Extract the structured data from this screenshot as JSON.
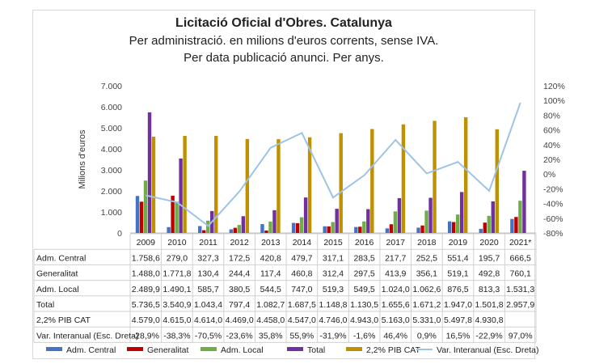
{
  "chart_data": {
    "type": "bar",
    "title": "Licitació Oficial d'Obres. Catalunya",
    "subtitle_lines": [
      "Per administració. en milions d'euros corrents, sense IVA.",
      "Per data publicació anunci. Per anys."
    ],
    "ylabel": "Milions d'euros",
    "ylim": [
      0,
      7000
    ],
    "y_ticks": [
      "0",
      "1.000",
      "2.000",
      "3.000",
      "4.000",
      "5.000",
      "6.000",
      "7.000"
    ],
    "y2lim": [
      -80,
      120
    ],
    "y2_ticks": [
      "-80%",
      "-60%",
      "-40%",
      "-20%",
      "0%",
      "20%",
      "40%",
      "60%",
      "80%",
      "100%",
      "120%"
    ],
    "grid": false,
    "legend_position": "bottom",
    "categories": [
      "2009",
      "2010",
      "2011",
      "2012",
      "2013",
      "2014",
      "2015",
      "2016",
      "2017",
      "2018",
      "2019",
      "2020",
      "2021*"
    ],
    "series": [
      {
        "name": "Adm. Central",
        "color": "#4472c4",
        "axis": "left",
        "values": [
          1758.6,
          279.0,
          327.3,
          172.5,
          420.8,
          479.7,
          317.1,
          283.5,
          217.7,
          252.5,
          551.4,
          195.7,
          666.5
        ],
        "labels": [
          "1.758,6",
          "279,0",
          "327,3",
          "172,5",
          "420,8",
          "479,7",
          "317,1",
          "283,5",
          "217,7",
          "252,5",
          "551,4",
          "195,7",
          "666,5"
        ]
      },
      {
        "name": "Generalitat",
        "color": "#c00000",
        "axis": "left",
        "values": [
          1488.0,
          1771.8,
          130.4,
          244.4,
          117.4,
          460.8,
          312.4,
          297.5,
          413.9,
          356.1,
          519.1,
          492.8,
          760.1
        ],
        "labels": [
          "1.488,0",
          "1.771,8",
          "130,4",
          "244,4",
          "117,4",
          "460,8",
          "312,4",
          "297,5",
          "413,9",
          "356,1",
          "519,1",
          "492,8",
          "760,1"
        ]
      },
      {
        "name": "Adm. Local",
        "color": "#70ad47",
        "axis": "left",
        "values": [
          2489.9,
          1490.1,
          585.7,
          380.5,
          544.5,
          747.0,
          519.3,
          549.5,
          1024.0,
          1062.6,
          876.5,
          813.3,
          1531.3
        ],
        "labels": [
          "2.489,9",
          "1.490,1",
          "585,7",
          "380,5",
          "544,5",
          "747,0",
          "519,3",
          "549,5",
          "1.024,0",
          "1.062,6",
          "876,5",
          "813,3",
          "1.531,3"
        ]
      },
      {
        "name": "Total",
        "color": "#7030a0",
        "axis": "left",
        "values": [
          5736.5,
          3540.9,
          1043.4,
          797.4,
          1082.7,
          1687.5,
          1148.8,
          1130.5,
          1655.6,
          1671.2,
          1947.0,
          1501.8,
          2957.9
        ],
        "labels": [
          "5.736,5",
          "3.540,9",
          "1.043,4",
          "797,4",
          "1.082,7",
          "1.687,5",
          "1.148,8",
          "1.130,5",
          "1.655,6",
          "1.671,2",
          "1.947,0",
          "1.501,8",
          "2.957,9"
        ]
      },
      {
        "name": "2,2% PIB CAT",
        "color": "#bf9000",
        "axis": "left",
        "values": [
          4579.0,
          4615.0,
          4614.0,
          4469.0,
          4458.0,
          4547.0,
          4746.0,
          4943.0,
          5163.0,
          5331.0,
          5497.8,
          4930.8,
          null
        ],
        "labels": [
          "4.579,0",
          "4.615,0",
          "4.614,0",
          "4.469,0",
          "4.458,0",
          "4.547,0",
          "4.746,0",
          "4.943,0",
          "5.163,0",
          "5.331,0",
          "5.497,8",
          "4.930,8",
          ""
        ]
      },
      {
        "name": "Var. Interanual (Esc. Dreta)",
        "color": "#9dc3e6",
        "axis": "right",
        "type": "line",
        "values": [
          -28.9,
          -38.3,
          -70.5,
          -23.6,
          35.8,
          55.9,
          -31.9,
          -1.6,
          46.4,
          0.9,
          16.5,
          -22.9,
          97.0
        ],
        "labels": [
          "-28,9%",
          "-38,3%",
          "-70,5%",
          "-23,6%",
          "35,8%",
          "55,9%",
          "-31,9%",
          "-1,6%",
          "46,4%",
          "0,9%",
          "16,5%",
          "-22,9%",
          "97,0%"
        ]
      }
    ]
  }
}
